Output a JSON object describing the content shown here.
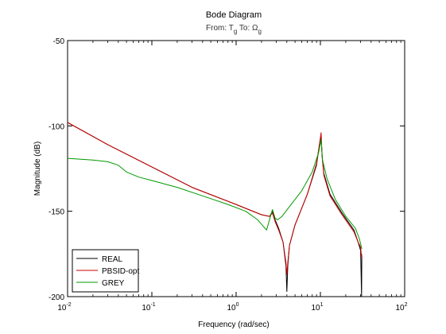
{
  "chart_data": {
    "type": "line",
    "title": "Bode Diagram",
    "subtitle": {
      "from_label": "From: T",
      "from_sub": "g",
      "to_label": "To: Ω",
      "to_sub": "g"
    },
    "xlabel": "Frequency  (rad/sec)",
    "ylabel": "Magnitude (dB)",
    "xscale": "log",
    "xlim": [
      0.01,
      100
    ],
    "ylim": [
      -200,
      -50
    ],
    "x_ticks": [
      {
        "value": 0.01,
        "base": "10",
        "exp": "-2"
      },
      {
        "value": 0.1,
        "base": "10",
        "exp": "-1"
      },
      {
        "value": 1,
        "base": "10",
        "exp": "0"
      },
      {
        "value": 10,
        "base": "10",
        "exp": "1"
      },
      {
        "value": 100,
        "base": "10",
        "exp": "2"
      }
    ],
    "y_ticks": [
      -50,
      -100,
      -150,
      -200
    ],
    "y_tick_labels": [
      "-50",
      "-100",
      "-150",
      "-200"
    ],
    "legend_position": "bottom-left",
    "series": [
      {
        "name": "REAL",
        "color": "#000000",
        "x": [
          0.01,
          0.03,
          0.1,
          0.3,
          1,
          2,
          2.5,
          2.7,
          2.9,
          3.2,
          3.6,
          3.9,
          4.0,
          4.1,
          4.3,
          5,
          7,
          9,
          9.8,
          10.2,
          10.5,
          11,
          13,
          18,
          25,
          28,
          30,
          30.8,
          31.0
        ],
        "y": [
          -98,
          -111,
          -124,
          -136,
          -146,
          -152,
          -153,
          -150,
          -155,
          -160,
          -168,
          -182,
          -197,
          -182,
          -170,
          -158,
          -140,
          -123,
          -110,
          -107,
          -118,
          -128,
          -140,
          -151,
          -161,
          -168,
          -173,
          -200,
          -176
        ]
      },
      {
        "name": "PBSID-opt",
        "color": "#cc0000",
        "x": [
          0.01,
          0.03,
          0.1,
          0.3,
          1,
          2,
          2.5,
          2.7,
          2.9,
          3.2,
          3.6,
          3.9,
          4.0,
          4.1,
          4.3,
          5,
          7,
          9,
          9.8,
          10.2,
          10.5,
          11,
          13,
          18,
          25,
          28,
          30,
          30.8,
          31.0
        ],
        "y": [
          -98,
          -111,
          -124,
          -136,
          -146,
          -152,
          -153,
          -151,
          -156,
          -161,
          -168,
          -180,
          -187,
          -180,
          -170,
          -158,
          -140,
          -122,
          -110,
          -104,
          -118,
          -129,
          -141,
          -152,
          -162,
          -168,
          -171,
          -177,
          -175
        ]
      },
      {
        "name": "GREY",
        "color": "#009900",
        "x": [
          0.01,
          0.02,
          0.03,
          0.04,
          0.05,
          0.07,
          0.1,
          0.2,
          0.4,
          0.8,
          1.3,
          1.8,
          2.3,
          2.7,
          2.9,
          3.1,
          3.5,
          4.5,
          6,
          8,
          9.5,
          10.2,
          10.6,
          12,
          15,
          20,
          26,
          29,
          31
        ],
        "y": [
          -119,
          -120,
          -121,
          -123,
          -127,
          -130,
          -132,
          -136,
          -141,
          -146,
          -150,
          -155,
          -161,
          -149,
          -154,
          -155,
          -153,
          -146,
          -138,
          -127,
          -116,
          -108,
          -120,
          -131,
          -143,
          -153,
          -160,
          -166,
          -172
        ]
      }
    ]
  }
}
